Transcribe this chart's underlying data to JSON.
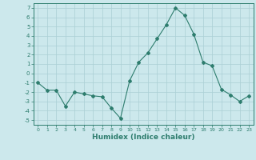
{
  "x": [
    0,
    1,
    2,
    3,
    4,
    5,
    6,
    7,
    8,
    9,
    10,
    11,
    12,
    13,
    14,
    15,
    16,
    17,
    18,
    19,
    20,
    21,
    22,
    23
  ],
  "y": [
    -1,
    -1.8,
    -1.8,
    -3.5,
    -2.0,
    -2.2,
    -2.4,
    -2.5,
    -3.7,
    -4.8,
    -0.8,
    1.2,
    2.2,
    3.7,
    5.2,
    7.0,
    6.2,
    4.2,
    1.2,
    0.8,
    -1.7,
    -2.3,
    -3.0,
    -2.4
  ],
  "ylim": [
    -5.5,
    7.5
  ],
  "yticks": [
    -5,
    -4,
    -3,
    -2,
    -1,
    0,
    1,
    2,
    3,
    4,
    5,
    6,
    7
  ],
  "xlabel": "Humidex (Indice chaleur)",
  "line_color": "#2e7d6e",
  "marker": "D",
  "marker_size": 2,
  "bg_color": "#cce8ec",
  "grid_color": "#aacfd4",
  "spine_color": "#2e7d6e"
}
